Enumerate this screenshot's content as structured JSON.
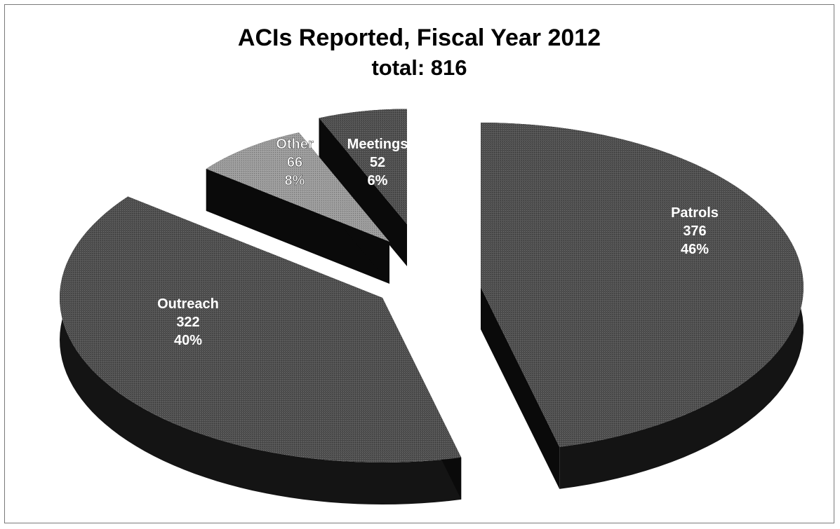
{
  "chart_data": {
    "type": "pie",
    "title": "ACIs Reported, Fiscal Year 2012",
    "subtitle": "total: 816",
    "slices": [
      {
        "label": "Patrols",
        "value": 376,
        "percent": "46%",
        "color": "#4d4d4d"
      },
      {
        "label": "Outreach",
        "value": 322,
        "percent": "40%",
        "color": "#4d4d4d"
      },
      {
        "label": "Other",
        "value": 66,
        "percent": "8%",
        "color": "#9a9a9a"
      },
      {
        "label": "Meetings",
        "value": 52,
        "percent": "6%",
        "color": "#4d4d4d"
      }
    ],
    "total": 816,
    "style": "3d-exploded",
    "legend": "none",
    "grid": false
  }
}
